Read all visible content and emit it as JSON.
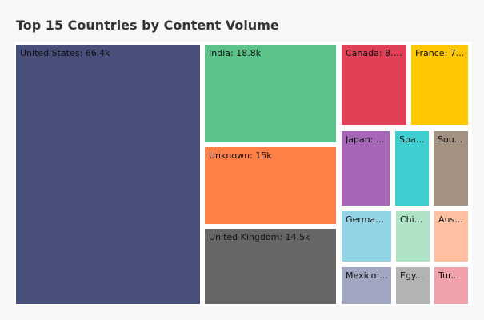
{
  "colors": {
    "background": "#f7f7f7",
    "plot_background": "#ffffff",
    "title": "#333333",
    "label": "#111111"
  },
  "chart_data": {
    "type": "treemap",
    "title": "Top 15 Countries by Content Volume",
    "items": [
      {
        "name": "United States",
        "label": "United States: 66.4k",
        "value": 66400,
        "color": "#474f7a"
      },
      {
        "name": "India",
        "label": "India: 18.8k",
        "value": 18800,
        "color": "#5bc28a"
      },
      {
        "name": "Unknown",
        "label": "Unknown: 15k",
        "value": 15000,
        "color": "#ff7f46"
      },
      {
        "name": "United Kingdom",
        "label": "United Kingdom: 14.5k",
        "value": 14500,
        "color": "#666666"
      },
      {
        "name": "Canada",
        "label": "Canada: 8.0...",
        "value": 8000,
        "color": "#e14157"
      },
      {
        "name": "France",
        "label": "France: 7...",
        "value": 7500,
        "color": "#ffc700"
      },
      {
        "name": "Japan",
        "label": "Japan: ...",
        "value": 5900,
        "color": "#a566b7"
      },
      {
        "name": "Spain",
        "label": "Spai...",
        "value": 4100,
        "color": "#3dcfcf"
      },
      {
        "name": "South Korea",
        "label": "Sou...",
        "value": 3800,
        "color": "#a39282"
      },
      {
        "name": "Germany",
        "label": "German...",
        "value": 4200,
        "color": "#92d3e5"
      },
      {
        "name": "China",
        "label": "Chi...",
        "value": 2700,
        "color": "#aee3c5"
      },
      {
        "name": "Australia",
        "label": "Aus...",
        "value": 2400,
        "color": "#ffc0a1"
      },
      {
        "name": "Mexico",
        "label": "Mexico:...",
        "value": 2800,
        "color": "#a1a7c1"
      },
      {
        "name": "Egypt",
        "label": "Egy...",
        "value": 2000,
        "color": "#b3b3b3"
      },
      {
        "name": "Turkey",
        "label": "Tur...",
        "value": 1800,
        "color": "#f0a1aa"
      }
    ]
  }
}
